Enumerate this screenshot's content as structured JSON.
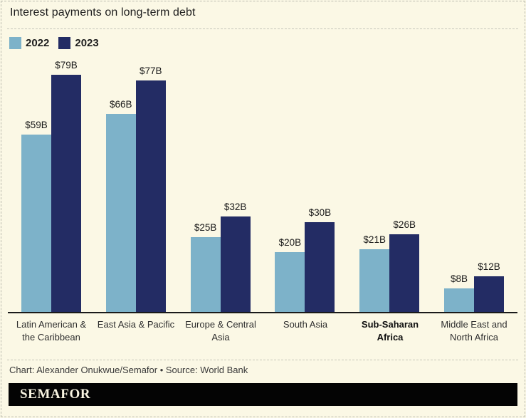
{
  "title": "Interest payments on long-term debt",
  "credit": "Chart: Alexander Onukwue/Semafor • Source: World Bank",
  "logo": "SEMAFOR",
  "colors": {
    "background": "#fbf8e5",
    "bar_2022": "#7db2c9",
    "bar_2023": "#232c64",
    "axis": "#1a1a1a",
    "logo_background": "#040404",
    "logo_text": "#f8f4e1"
  },
  "legend": [
    {
      "label": "2022",
      "color": "#7db2c9"
    },
    {
      "label": "2023",
      "color": "#232c64"
    }
  ],
  "chart_data": {
    "type": "bar",
    "title": "Interest payments on long-term debt",
    "categories": [
      "Latin American & the Caribbean",
      "East Asia & Pacific",
      "Europe & Central Asia",
      "South Asia",
      "Sub-Saharan Africa",
      "Middle East and North Africa"
    ],
    "category_lines": [
      [
        "Latin American &",
        "the Caribbean"
      ],
      [
        "East Asia & Pacific"
      ],
      [
        "Europe & Central",
        "Asia"
      ],
      [
        "South Asia"
      ],
      [
        "Sub-Saharan",
        "Africa"
      ],
      [
        "Middle East and",
        "North Africa"
      ]
    ],
    "emphasized_category_index": 4,
    "series": [
      {
        "name": "2022",
        "color": "#7db2c9",
        "values": [
          59,
          66,
          25,
          20,
          21,
          8
        ]
      },
      {
        "name": "2023",
        "color": "#232c64",
        "values": [
          79,
          77,
          32,
          30,
          26,
          12
        ]
      }
    ],
    "value_labels": [
      [
        "$59B",
        "$66B",
        "$25B",
        "$20B",
        "$21B",
        "$8B"
      ],
      [
        "$79B",
        "$77B",
        "$32B",
        "$30B",
        "$26B",
        "$12B"
      ]
    ],
    "value_format": "$[value]B",
    "ylim": [
      0,
      83
    ],
    "grid": false,
    "legend_position": "top-left",
    "source": "World Bank"
  }
}
